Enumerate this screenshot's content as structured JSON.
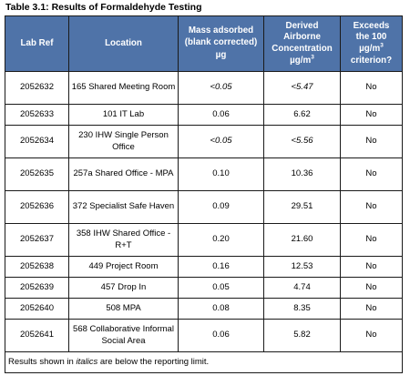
{
  "caption": "Table 3.1: Results of Formaldehyde Testing",
  "headers": {
    "lab_ref": "Lab Ref",
    "location": "Location",
    "mass_line1": "Mass adsorbed",
    "mass_line2": "(blank corrected)",
    "mass_unit": "µg",
    "conc_line1": "Derived",
    "conc_line2": "Airborne",
    "conc_line3": "Concentration",
    "conc_unit": "µg/m",
    "conc_unit_sup": "3",
    "exceeds_line1": "Exceeds",
    "exceeds_line2": "the 100",
    "exceeds_line3": "µg/m",
    "exceeds_line3_sup": "3",
    "exceeds_line4": "criterion?"
  },
  "rows": [
    {
      "lab_ref": "2052632",
      "location": "165 Shared Meeting Room",
      "mass": "<0.05",
      "concentration": "<5.47",
      "exceeds": "No",
      "below_limit": true
    },
    {
      "lab_ref": "2052633",
      "location": "101 IT Lab",
      "mass": "0.06",
      "concentration": "6.62",
      "exceeds": "No",
      "below_limit": false
    },
    {
      "lab_ref": "2052634",
      "location": "230 IHW Single Person Office",
      "mass": "<0.05",
      "concentration": "<5.56",
      "exceeds": "No",
      "below_limit": true
    },
    {
      "lab_ref": "2052635",
      "location": "257a Shared Office - MPA",
      "mass": "0.10",
      "concentration": "10.36",
      "exceeds": "No",
      "below_limit": false
    },
    {
      "lab_ref": "2052636",
      "location": "372 Specialist Safe Haven",
      "mass": "0.09",
      "concentration": "29.51",
      "exceeds": "No",
      "below_limit": false
    },
    {
      "lab_ref": "2052637",
      "location": "358 IHW Shared Office - R+T",
      "mass": "0.20",
      "concentration": "21.60",
      "exceeds": "No",
      "below_limit": false
    },
    {
      "lab_ref": "2052638",
      "location": "449 Project Room",
      "mass": "0.16",
      "concentration": "12.53",
      "exceeds": "No",
      "below_limit": false
    },
    {
      "lab_ref": "2052639",
      "location": "457 Drop In",
      "mass": "0.05",
      "concentration": "4.74",
      "exceeds": "No",
      "below_limit": false
    },
    {
      "lab_ref": "2052640",
      "location": "508 MPA",
      "mass": "0.08",
      "concentration": "8.35",
      "exceeds": "No",
      "below_limit": false
    },
    {
      "lab_ref": "2052641",
      "location": "568 Collaborative Informal Social Area",
      "mass": "0.06",
      "concentration": "5.82",
      "exceeds": "No",
      "below_limit": false
    }
  ],
  "footnote": {
    "prefix": "Results shown in ",
    "emphasis": "italics",
    "suffix": " are below the reporting limit."
  },
  "colors": {
    "header_bg": "#4f73a8",
    "header_text": "#ffffff",
    "border": "#1a1a1a"
  }
}
